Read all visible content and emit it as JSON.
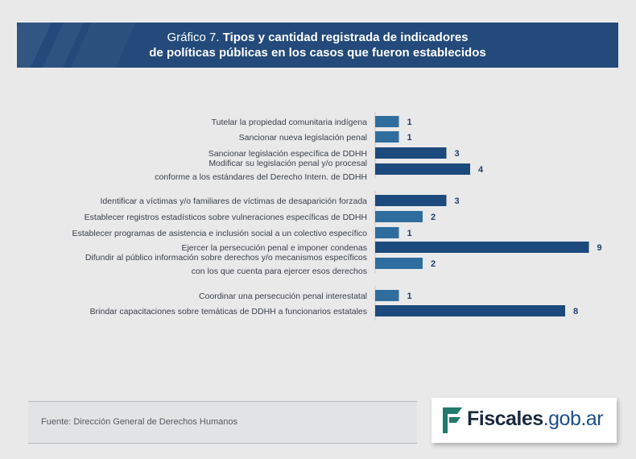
{
  "header": {
    "title_prefix": "Gráfico 7.",
    "title_line1": "Tipos y cantidad registrada de indicadores",
    "title_line2": "de políticas públicas en los casos que fueron establecidos"
  },
  "chart_data": {
    "type": "bar",
    "orientation": "horizontal",
    "title": "Tipos y cantidad registrada de indicadores de políticas públicas en los casos que fueron establecidos",
    "categories": [
      [
        "Tutelar la propiedad comunitaria indígena"
      ],
      [
        "Sancionar nueva legislación penal"
      ],
      [
        "Sancionar legislación específica de DDHH"
      ],
      [
        "Modificar su legislación penal y/o procesal",
        "conforme a los estándares del Derecho Intern. de DDHH"
      ],
      [
        "Identificar a víctimas y/o familiares de víctimas de desaparición forzada"
      ],
      [
        "Establecer registros estadísticos sobre vulneraciones específicas de DDHH"
      ],
      [
        "Establecer programas de asistencia e inclusión social a un colectivo específico"
      ],
      [
        "Ejercer la persecución penal e imponer condenas"
      ],
      [
        "Difundir al público información sobre derechos y/o mecanismos específicos",
        "con los que cuenta para ejercer esos derechos"
      ],
      [
        "Coordinar una persecución penal interestatal"
      ],
      [
        "Brindar capacitaciones sobre temáticas de DDHH a funcionarios estatales"
      ]
    ],
    "values": [
      1,
      1,
      3,
      4,
      3,
      2,
      1,
      9,
      2,
      1,
      8
    ],
    "groups": [
      [
        0,
        1,
        2,
        3
      ],
      [
        4,
        5,
        6,
        7,
        8
      ],
      [
        9,
        10
      ]
    ],
    "xlim": [
      0,
      9
    ],
    "colors": {
      "bar_light": "#2f6d9e",
      "bar_dark": "#1c4a7c"
    }
  },
  "footer": {
    "source": "Fuente: Dirección General de Derechos Humanos"
  },
  "logo": {
    "name": "Fiscales",
    "domain": ".gob.ar"
  }
}
